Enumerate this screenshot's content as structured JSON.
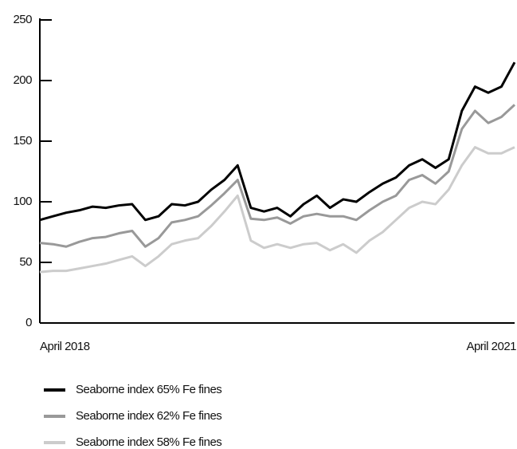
{
  "chart_data": {
    "type": "line",
    "categories": [
      "April 2018",
      null,
      null,
      null,
      null,
      null,
      null,
      null,
      null,
      null,
      null,
      null,
      null,
      null,
      null,
      null,
      null,
      null,
      null,
      null,
      null,
      null,
      null,
      null,
      null,
      null,
      null,
      null,
      null,
      null,
      null,
      null,
      null,
      null,
      null,
      null,
      "April 2021"
    ],
    "series": [
      {
        "name": "Seaborne index 65% Fe fines",
        "color": "#000000",
        "values": [
          85,
          88,
          91,
          93,
          96,
          95,
          97,
          98,
          85,
          88,
          98,
          97,
          100,
          110,
          118,
          130,
          95,
          92,
          95,
          88,
          98,
          105,
          95,
          102,
          100,
          108,
          115,
          120,
          130,
          135,
          128,
          135,
          175,
          195,
          190,
          195,
          215
        ]
      },
      {
        "name": "Seaborne index 62% Fe fines",
        "color": "#999999",
        "values": [
          66,
          65,
          63,
          67,
          70,
          71,
          74,
          76,
          63,
          70,
          83,
          85,
          88,
          97,
          107,
          118,
          86,
          85,
          87,
          82,
          88,
          90,
          88,
          88,
          85,
          93,
          100,
          105,
          118,
          122,
          115,
          125,
          160,
          175,
          165,
          170,
          180
        ]
      },
      {
        "name": "Seaborne index 58% Fe fines",
        "color": "#cccccc",
        "values": [
          42,
          43,
          43,
          45,
          47,
          49,
          52,
          55,
          47,
          55,
          65,
          68,
          70,
          80,
          92,
          105,
          68,
          62,
          65,
          62,
          65,
          66,
          60,
          65,
          58,
          68,
          75,
          85,
          95,
          100,
          98,
          110,
          130,
          145,
          140,
          140,
          145
        ]
      }
    ],
    "ylim": [
      0,
      250
    ],
    "yticks": [
      0,
      50,
      100,
      150,
      200,
      250
    ]
  }
}
